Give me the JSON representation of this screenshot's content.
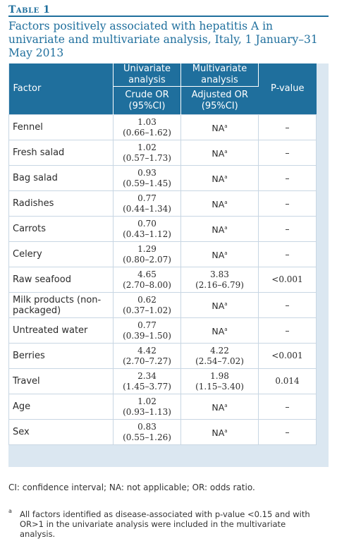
{
  "table_label": "Table 1",
  "caption": "Factors positively associated with hepatitis A in univariate and multivariate analysis, Italy, 1 January–31 May 2013",
  "headers": {
    "factor": "Factor",
    "univariate": "Univariate analysis",
    "multivariate": "Multivariate analysis",
    "pvalue": "P-value",
    "crude_or": "Crude OR",
    "crude_ci": "(95%CI)",
    "adjusted_or": "Adjusted OR",
    "adjusted_ci": "(95%CI)"
  },
  "rows": [
    {
      "factor": "Fennel",
      "crude": "1.03",
      "crude_ci": "(0.66–1.62)",
      "adj": "NA",
      "adj_sup": "a",
      "adj_ci": "",
      "p": "–"
    },
    {
      "factor": "Fresh salad",
      "crude": "1.02",
      "crude_ci": "(0.57–1.73)",
      "adj": "NA",
      "adj_sup": "a",
      "adj_ci": "",
      "p": "–"
    },
    {
      "factor": "Bag salad",
      "crude": "0.93",
      "crude_ci": "(0.59–1.45)",
      "adj": "NA",
      "adj_sup": "a",
      "adj_ci": "",
      "p": "–"
    },
    {
      "factor": "Radishes",
      "crude": "0.77",
      "crude_ci": "(0.44–1.34)",
      "adj": "NA",
      "adj_sup": "a",
      "adj_ci": "",
      "p": "–"
    },
    {
      "factor": "Carrots",
      "crude": "0.70",
      "crude_ci": "(0.43–1.12)",
      "adj": "NA",
      "adj_sup": "a",
      "adj_ci": "",
      "p": "–"
    },
    {
      "factor": "Celery",
      "crude": "1.29",
      "crude_ci": "(0.80–2.07)",
      "adj": "NA",
      "adj_sup": "a",
      "adj_ci": "",
      "p": "–"
    },
    {
      "factor": "Raw seafood",
      "crude": "4.65",
      "crude_ci": "(2.70–8.00)",
      "adj": "3.83",
      "adj_sup": "",
      "adj_ci": "(2.16–6.79)",
      "p": "<0.001"
    },
    {
      "factor": "Milk products (non-packaged)",
      "crude": "0.62",
      "crude_ci": "(0.37–1.02)",
      "adj": "NA",
      "adj_sup": "a",
      "adj_ci": "",
      "p": "–"
    },
    {
      "factor": "Untreated water",
      "crude": "0.77",
      "crude_ci": "(0.39–1.50)",
      "adj": "NA",
      "adj_sup": "a",
      "adj_ci": "",
      "p": "–"
    },
    {
      "factor": "Berries",
      "crude": "4.42",
      "crude_ci": "(2.70–7.27)",
      "adj": "4.22",
      "adj_sup": "",
      "adj_ci": "(2.54–7.02)",
      "p": "<0.001"
    },
    {
      "factor": "Travel",
      "crude": "2.34",
      "crude_ci": "(1.45–3.77)",
      "adj": "1.98",
      "adj_sup": "",
      "adj_ci": "(1.15–3.40)",
      "p": "0.014"
    },
    {
      "factor": "Age",
      "crude": "1.02",
      "crude_ci": "(0.93–1.13)",
      "adj": "NA",
      "adj_sup": "a",
      "adj_ci": "",
      "p": "–"
    },
    {
      "factor": "Sex",
      "crude": "0.83",
      "crude_ci": "(0.55–1.26)",
      "adj": "NA",
      "adj_sup": "a",
      "adj_ci": "",
      "p": "–"
    }
  ],
  "footnote_abbrev": "CI: confidence interval; NA: not applicable; OR: odds ratio.",
  "footnote_mark": "a",
  "footnote_a": "All factors identified as disease-associated with p-value <0.15 and with OR>1 in the univariate analysis were included in the multivariate analysis.",
  "colors": {
    "accent": "#1f6f9d",
    "panel": "#dbe7f1"
  }
}
